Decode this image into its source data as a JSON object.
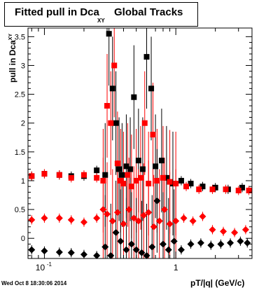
{
  "title": {
    "main": "Fitted pull in Dca",
    "subscript": "XY",
    "tail": "Global Tracks"
  },
  "ylabel": {
    "main": "pull in Dca",
    "subscript": "XY"
  },
  "xlabel": "pT/|q| (GeV/c)",
  "timestamp": "Wed Oct  8 18:30:06 2014",
  "chart_data": {
    "type": "scatter",
    "x_scale": "log",
    "xlim": [
      0.075,
      3.8
    ],
    "ylim": [
      -0.35,
      3.65
    ],
    "x_tick_labels": [
      "10-1",
      "1"
    ],
    "y_ticks": [
      0,
      0.5,
      1,
      1.5,
      2,
      2.5,
      3,
      3.5
    ],
    "y_tick_labels": [
      "0",
      "0.5",
      "1",
      "1.5",
      "2",
      "2.5",
      "3",
      "3.5"
    ],
    "grid": false,
    "series": [
      {
        "marker": "square",
        "color": "#000000",
        "x": [
          0.08,
          0.1,
          0.13,
          0.16,
          0.2,
          0.25,
          0.29,
          0.31,
          0.33,
          0.35,
          0.37,
          0.39,
          0.42,
          0.45,
          0.48,
          0.52,
          0.56,
          0.6,
          0.65,
          0.7,
          0.78,
          0.85,
          0.95,
          1.1,
          1.3,
          1.6,
          2.0,
          2.5,
          3.2
        ],
        "y": [
          1.08,
          1.12,
          1.1,
          1.08,
          1.08,
          1.18,
          1.1,
          3.55,
          2.6,
          2.0,
          1.2,
          1.1,
          1.25,
          1.2,
          2.45,
          1.35,
          1.2,
          3.15,
          2.6,
          1.25,
          1.35,
          1.05,
          0.95,
          1.0,
          0.95,
          0.9,
          0.88,
          0.85,
          0.88
        ]
      },
      {
        "marker": "square",
        "color": "#ff0000",
        "x": [
          0.08,
          0.1,
          0.13,
          0.16,
          0.2,
          0.25,
          0.28,
          0.3,
          0.32,
          0.34,
          0.36,
          0.38,
          0.4,
          0.43,
          0.46,
          0.5,
          0.54,
          0.58,
          0.62,
          0.67,
          0.72,
          0.8,
          0.9,
          1.0,
          1.2,
          1.5,
          1.9,
          2.4,
          3.0,
          3.6
        ],
        "y": [
          1.08,
          1.12,
          1.1,
          1.05,
          1.1,
          1.05,
          1.0,
          2.3,
          2.0,
          3.0,
          1.3,
          1.0,
          0.95,
          1.1,
          0.9,
          1.0,
          1.05,
          2.0,
          0.95,
          1.8,
          1.0,
          1.05,
          0.98,
          0.95,
          0.9,
          0.85,
          0.85,
          0.85,
          0.83,
          0.83
        ]
      },
      {
        "marker": "diamond",
        "color": "#ff0000",
        "x": [
          0.08,
          0.1,
          0.13,
          0.16,
          0.2,
          0.25,
          0.28,
          0.3,
          0.33,
          0.36,
          0.4,
          0.44,
          0.48,
          0.52,
          0.57,
          0.62,
          0.68,
          0.75,
          0.82,
          0.9,
          1.0,
          1.15,
          1.35,
          1.6,
          1.9,
          2.3,
          2.8,
          3.4
        ],
        "y": [
          0.32,
          0.35,
          0.35,
          0.32,
          0.28,
          0.35,
          0.5,
          0.42,
          0.3,
          0.45,
          0.25,
          0.5,
          0.35,
          0.3,
          0.4,
          0.45,
          0.2,
          0.3,
          0.5,
          0.25,
          0.3,
          0.35,
          0.3,
          0.38,
          0.15,
          0.12,
          0.1,
          0.15
        ]
      },
      {
        "marker": "diamond",
        "color": "#000000",
        "x": [
          0.08,
          0.1,
          0.13,
          0.16,
          0.2,
          0.25,
          0.29,
          0.32,
          0.35,
          0.38,
          0.42,
          0.46,
          0.5,
          0.55,
          0.6,
          0.66,
          0.72,
          0.8,
          0.88,
          0.97,
          1.1,
          1.3,
          1.55,
          1.85,
          2.2,
          2.6,
          3.1,
          3.5
        ],
        "y": [
          -0.2,
          -0.22,
          -0.24,
          -0.25,
          -0.28,
          -0.3,
          -0.15,
          -0.3,
          0.1,
          -0.05,
          -0.2,
          -0.1,
          -0.2,
          -0.25,
          -0.3,
          -0.15,
          0.65,
          -0.1,
          -0.2,
          -0.05,
          -0.2,
          -0.1,
          -0.08,
          -0.12,
          -0.1,
          -0.08,
          -0.05,
          -0.08
        ]
      }
    ]
  }
}
